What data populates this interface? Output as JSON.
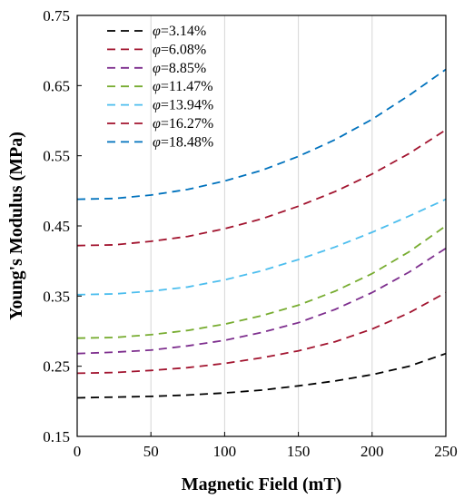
{
  "chart_data": {
    "type": "line",
    "xlabel": "Magnetic Field (mT)",
    "ylabel": "Young's Modulus (MPa)",
    "xlim": [
      0,
      250
    ],
    "ylim": [
      0.15,
      0.75
    ],
    "xticks": [
      0,
      50,
      100,
      150,
      200,
      250
    ],
    "yticks": [
      0.15,
      0.25,
      0.35,
      0.45,
      0.55,
      0.65,
      0.75
    ],
    "grid": "vertical",
    "legend_position": "top-left",
    "line_style": "dashed",
    "x": [
      0,
      25,
      50,
      75,
      100,
      125,
      150,
      175,
      200,
      225,
      250
    ],
    "series": [
      {
        "name": "=3.14%",
        "symbol": "φ",
        "color": "#000000",
        "values": [
          0.205,
          0.206,
          0.207,
          0.209,
          0.212,
          0.216,
          0.222,
          0.229,
          0.238,
          0.25,
          0.268
        ]
      },
      {
        "name": "=6.08%",
        "symbol": "φ",
        "color": "#A2142F",
        "values": [
          0.24,
          0.241,
          0.244,
          0.248,
          0.254,
          0.262,
          0.272,
          0.285,
          0.303,
          0.326,
          0.355
        ]
      },
      {
        "name": "=8.85%",
        "symbol": "φ",
        "color": "#7E2F8E",
        "values": [
          0.268,
          0.27,
          0.273,
          0.279,
          0.287,
          0.298,
          0.312,
          0.331,
          0.355,
          0.384,
          0.418
        ]
      },
      {
        "name": "=11.47%",
        "symbol": "φ",
        "color": "#77AC30",
        "values": [
          0.29,
          0.291,
          0.295,
          0.301,
          0.31,
          0.322,
          0.337,
          0.357,
          0.382,
          0.413,
          0.45
        ]
      },
      {
        "name": "=13.94%",
        "symbol": "φ",
        "color": "#4DBEEE",
        "values": [
          0.352,
          0.353,
          0.357,
          0.363,
          0.373,
          0.386,
          0.402,
          0.42,
          0.441,
          0.464,
          0.488
        ]
      },
      {
        "name": "=16.27%",
        "symbol": "φ",
        "color": "#A2142F",
        "values": [
          0.422,
          0.423,
          0.428,
          0.435,
          0.446,
          0.46,
          0.478,
          0.499,
          0.524,
          0.553,
          0.587
        ]
      },
      {
        "name": "=18.48%",
        "symbol": "φ",
        "color": "#0072BD",
        "values": [
          0.488,
          0.489,
          0.494,
          0.502,
          0.514,
          0.529,
          0.549,
          0.573,
          0.602,
          0.636,
          0.673
        ]
      }
    ]
  }
}
